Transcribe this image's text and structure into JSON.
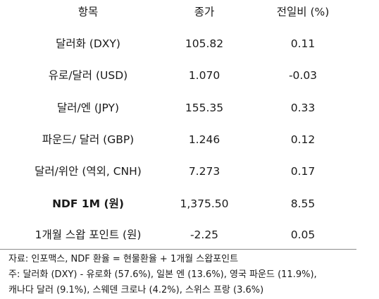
{
  "table": {
    "headers": [
      "항목",
      "종가",
      "전일비 (%)"
    ],
    "rows": [
      {
        "item": "달러화 (DXY)",
        "close": "105.82",
        "change": "0.11"
      },
      {
        "item": "유로/달러 (USD)",
        "close": "1.070",
        "change": "-0.03"
      },
      {
        "item": "달러/엔 (JPY)",
        "close": "155.35",
        "change": "0.33"
      },
      {
        "item": "파운드/ 달러 (GBP)",
        "close": "1.246",
        "change": "0.12"
      },
      {
        "item": "달러/위안 (역외, CNH)",
        "close": "7.273",
        "change": "0.17"
      },
      {
        "item": "NDF 1M (원)",
        "close": "1,375.50",
        "change": "8.55"
      },
      {
        "item": "1개월 스왑 포인트 (원)",
        "close": "-2.25",
        "change": "0.05"
      }
    ]
  },
  "notes": {
    "source": "자료: 인포맥스, NDF 환율 = 현물환율 + 1개월 스왑포인트",
    "note_line1": "주: 달러화 (DXY) - 유로화 (57.6%), 일본 엔 (13.6%), 영국 파운드 (11.9%),",
    "note_line2": "캐나다 달러 (9.1%), 스웨덴 크로나 (4.2%), 스위스 프랑 (3.6%)"
  }
}
